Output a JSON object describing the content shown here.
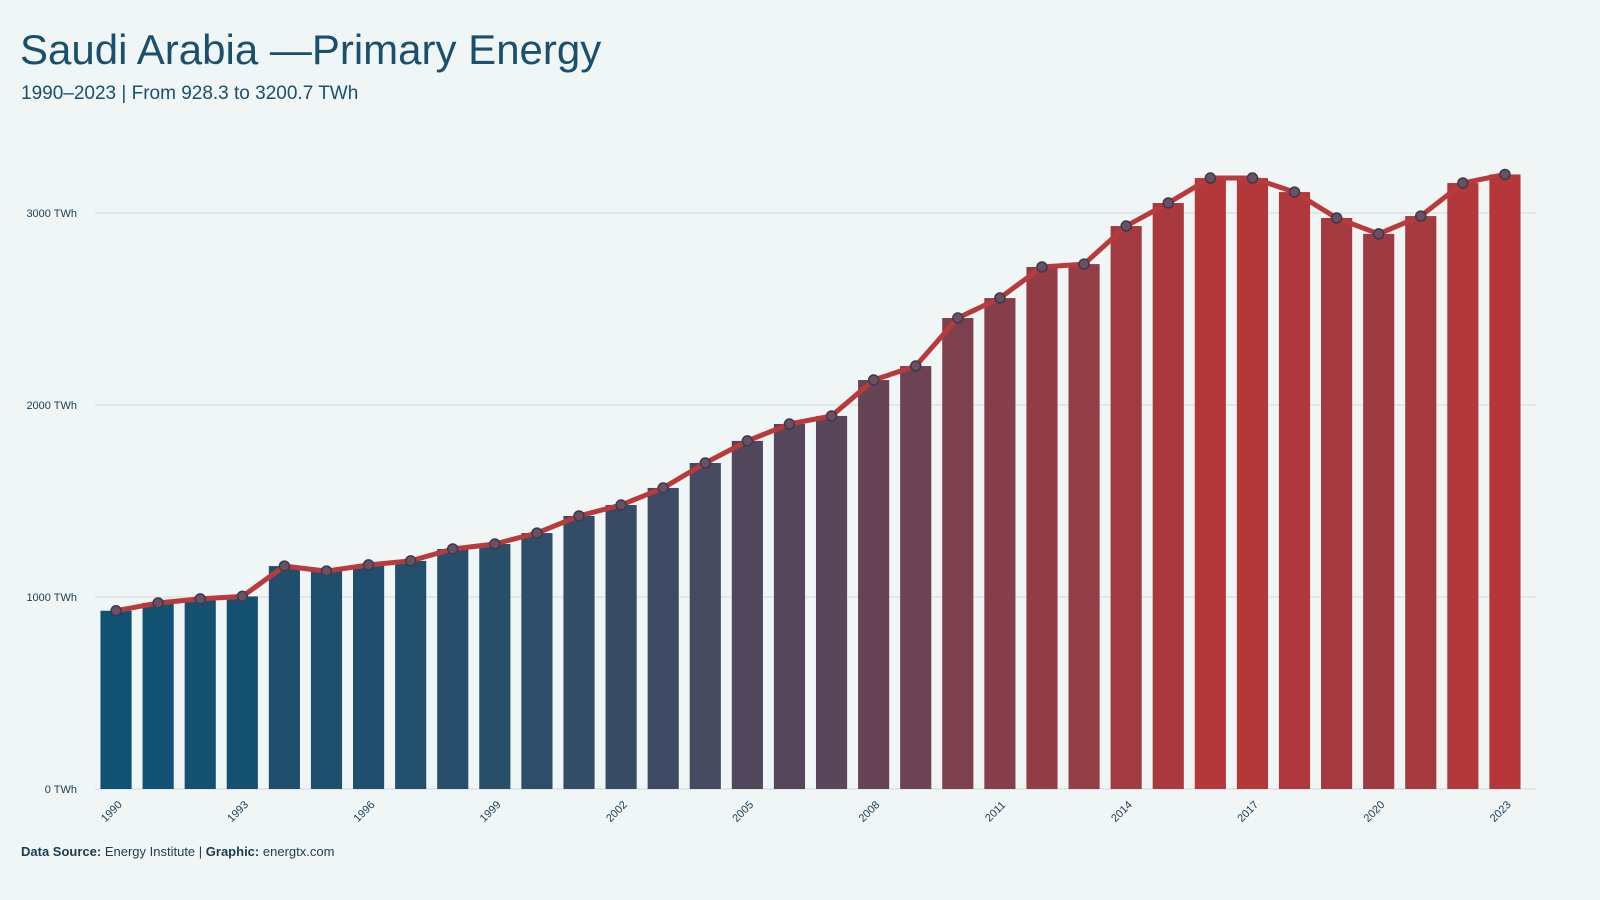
{
  "chart_data": {
    "type": "bar",
    "title": "Saudi Arabia —Primary Energy",
    "subtitle": "1990–2023 | From 928.3 to 3200.7 TWh",
    "categories": [
      "1990",
      null,
      null,
      "1993",
      null,
      null,
      "1996",
      null,
      null,
      "1999",
      null,
      null,
      "2002",
      null,
      null,
      "2005",
      null,
      null,
      "2008",
      null,
      null,
      "2011",
      null,
      null,
      "2014",
      null,
      null,
      "2017",
      null,
      null,
      "2020",
      null,
      null,
      "2023"
    ],
    "values": [
      928.3,
      969,
      990,
      1003,
      1161,
      1135,
      1167,
      1188,
      1250,
      1276,
      1333,
      1422,
      1479,
      1568,
      1698,
      1813,
      1901,
      1943,
      2130,
      2203,
      2453,
      2557,
      2719,
      2734,
      2932,
      3052,
      3182,
      3182,
      3109,
      2974,
      2891,
      2984,
      3156,
      3200.7
    ],
    "color_low": "#0f5273",
    "color_high": "#b5373a",
    "line": true,
    "line_color": "#b83a3c",
    "point_color": "#6b4f62",
    "ylim": [
      0,
      3000
    ],
    "yticks": [
      {
        "value": 0,
        "label": "0 TWh"
      },
      {
        "value": 1000,
        "label": "1000 TWh"
      },
      {
        "value": 2000,
        "label": "2000 TWh"
      },
      {
        "value": 3000,
        "label": "3000 TWh"
      }
    ],
    "grid": true,
    "footer": {
      "source_label": "Data Source:",
      "source": "Energy Institute |",
      "graphic_label": "Graphic:",
      "graphic": "energtx.com"
    }
  }
}
